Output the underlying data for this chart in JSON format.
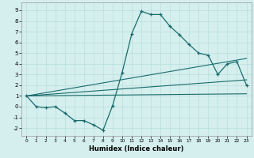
{
  "xlabel": "Humidex (Indice chaleur)",
  "background_color": "#d4efee",
  "line_color": "#1a6b6b",
  "grid_color": "#b8dede",
  "xlim": [
    -0.5,
    23.5
  ],
  "ylim": [
    -2.7,
    9.7
  ],
  "xticks": [
    0,
    1,
    2,
    3,
    4,
    5,
    6,
    7,
    8,
    9,
    10,
    11,
    12,
    13,
    14,
    15,
    16,
    17,
    18,
    19,
    20,
    21,
    22,
    23
  ],
  "yticks": [
    -2,
    -1,
    0,
    1,
    2,
    3,
    4,
    5,
    6,
    7,
    8,
    9
  ],
  "series1_x": [
    0,
    1,
    2,
    3,
    4,
    5,
    6,
    7,
    8,
    9,
    10,
    11,
    12,
    13,
    14,
    15,
    16,
    17,
    18,
    19,
    20,
    21,
    22,
    23
  ],
  "series1_y": [
    1.0,
    0.0,
    -0.1,
    0.0,
    -0.6,
    -1.3,
    -1.3,
    -1.7,
    -2.2,
    0.1,
    3.2,
    6.8,
    8.9,
    8.6,
    8.6,
    7.5,
    6.7,
    5.8,
    5.0,
    4.8,
    3.0,
    4.0,
    4.2,
    2.0
  ],
  "series2_x": [
    0,
    23
  ],
  "series2_y": [
    1.0,
    1.2
  ],
  "series3_x": [
    0,
    23
  ],
  "series3_y": [
    1.0,
    2.5
  ],
  "series4_x": [
    0,
    23
  ],
  "series4_y": [
    1.0,
    4.5
  ]
}
